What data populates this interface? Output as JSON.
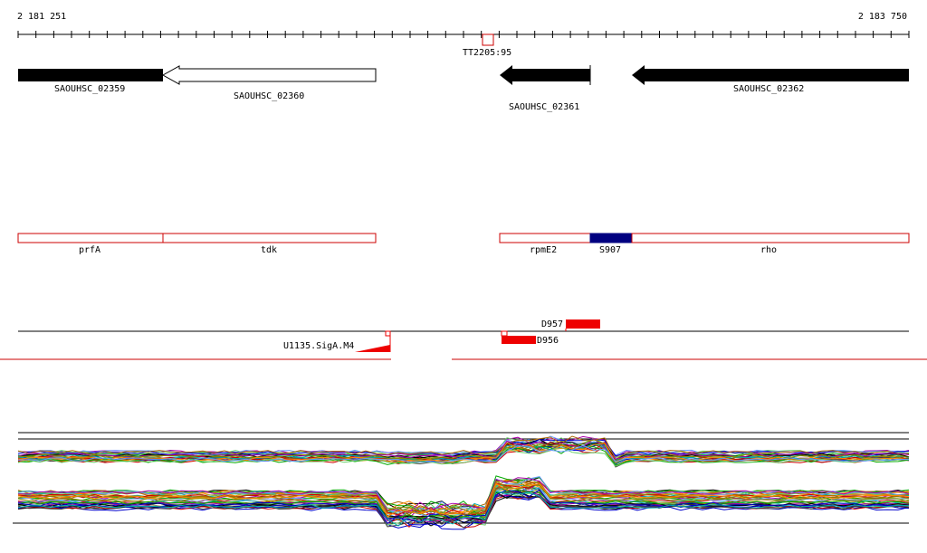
{
  "coordinates": {
    "start": "2 181 251",
    "end": "2 183 750"
  },
  "terminator": {
    "label": "TT2205:95"
  },
  "genes": [
    {
      "id": "SAOUHSC_02359",
      "strand": "-",
      "fill": "#000000"
    },
    {
      "id": "SAOUHSC_02360",
      "strand": "-",
      "fill": "#ffffff"
    },
    {
      "id": "SAOUHSC_02361",
      "strand": "-",
      "fill": "#000000"
    },
    {
      "id": "SAOUHSC_02362",
      "strand": "-",
      "fill": "#000000"
    }
  ],
  "features": [
    {
      "label": "prfA"
    },
    {
      "label": "tdk"
    },
    {
      "label": "rpmE2"
    },
    {
      "label": "S907"
    },
    {
      "label": "rho"
    }
  ],
  "regulatory": [
    {
      "label": "D957"
    },
    {
      "label": "D956"
    },
    {
      "label": "U1135.SigA.M4"
    }
  ],
  "colors": {
    "feature_border": "#cc0000",
    "highlight_box": "#000080",
    "regulatory": "#ee0000",
    "coverage_palette": [
      "#000000",
      "#444444",
      "#cc0000",
      "#00aa00",
      "#0000cc",
      "#aa6600",
      "#aa00aa",
      "#00aaaa",
      "#888800",
      "#ff8800",
      "#66cc66",
      "#6699ff"
    ]
  }
}
